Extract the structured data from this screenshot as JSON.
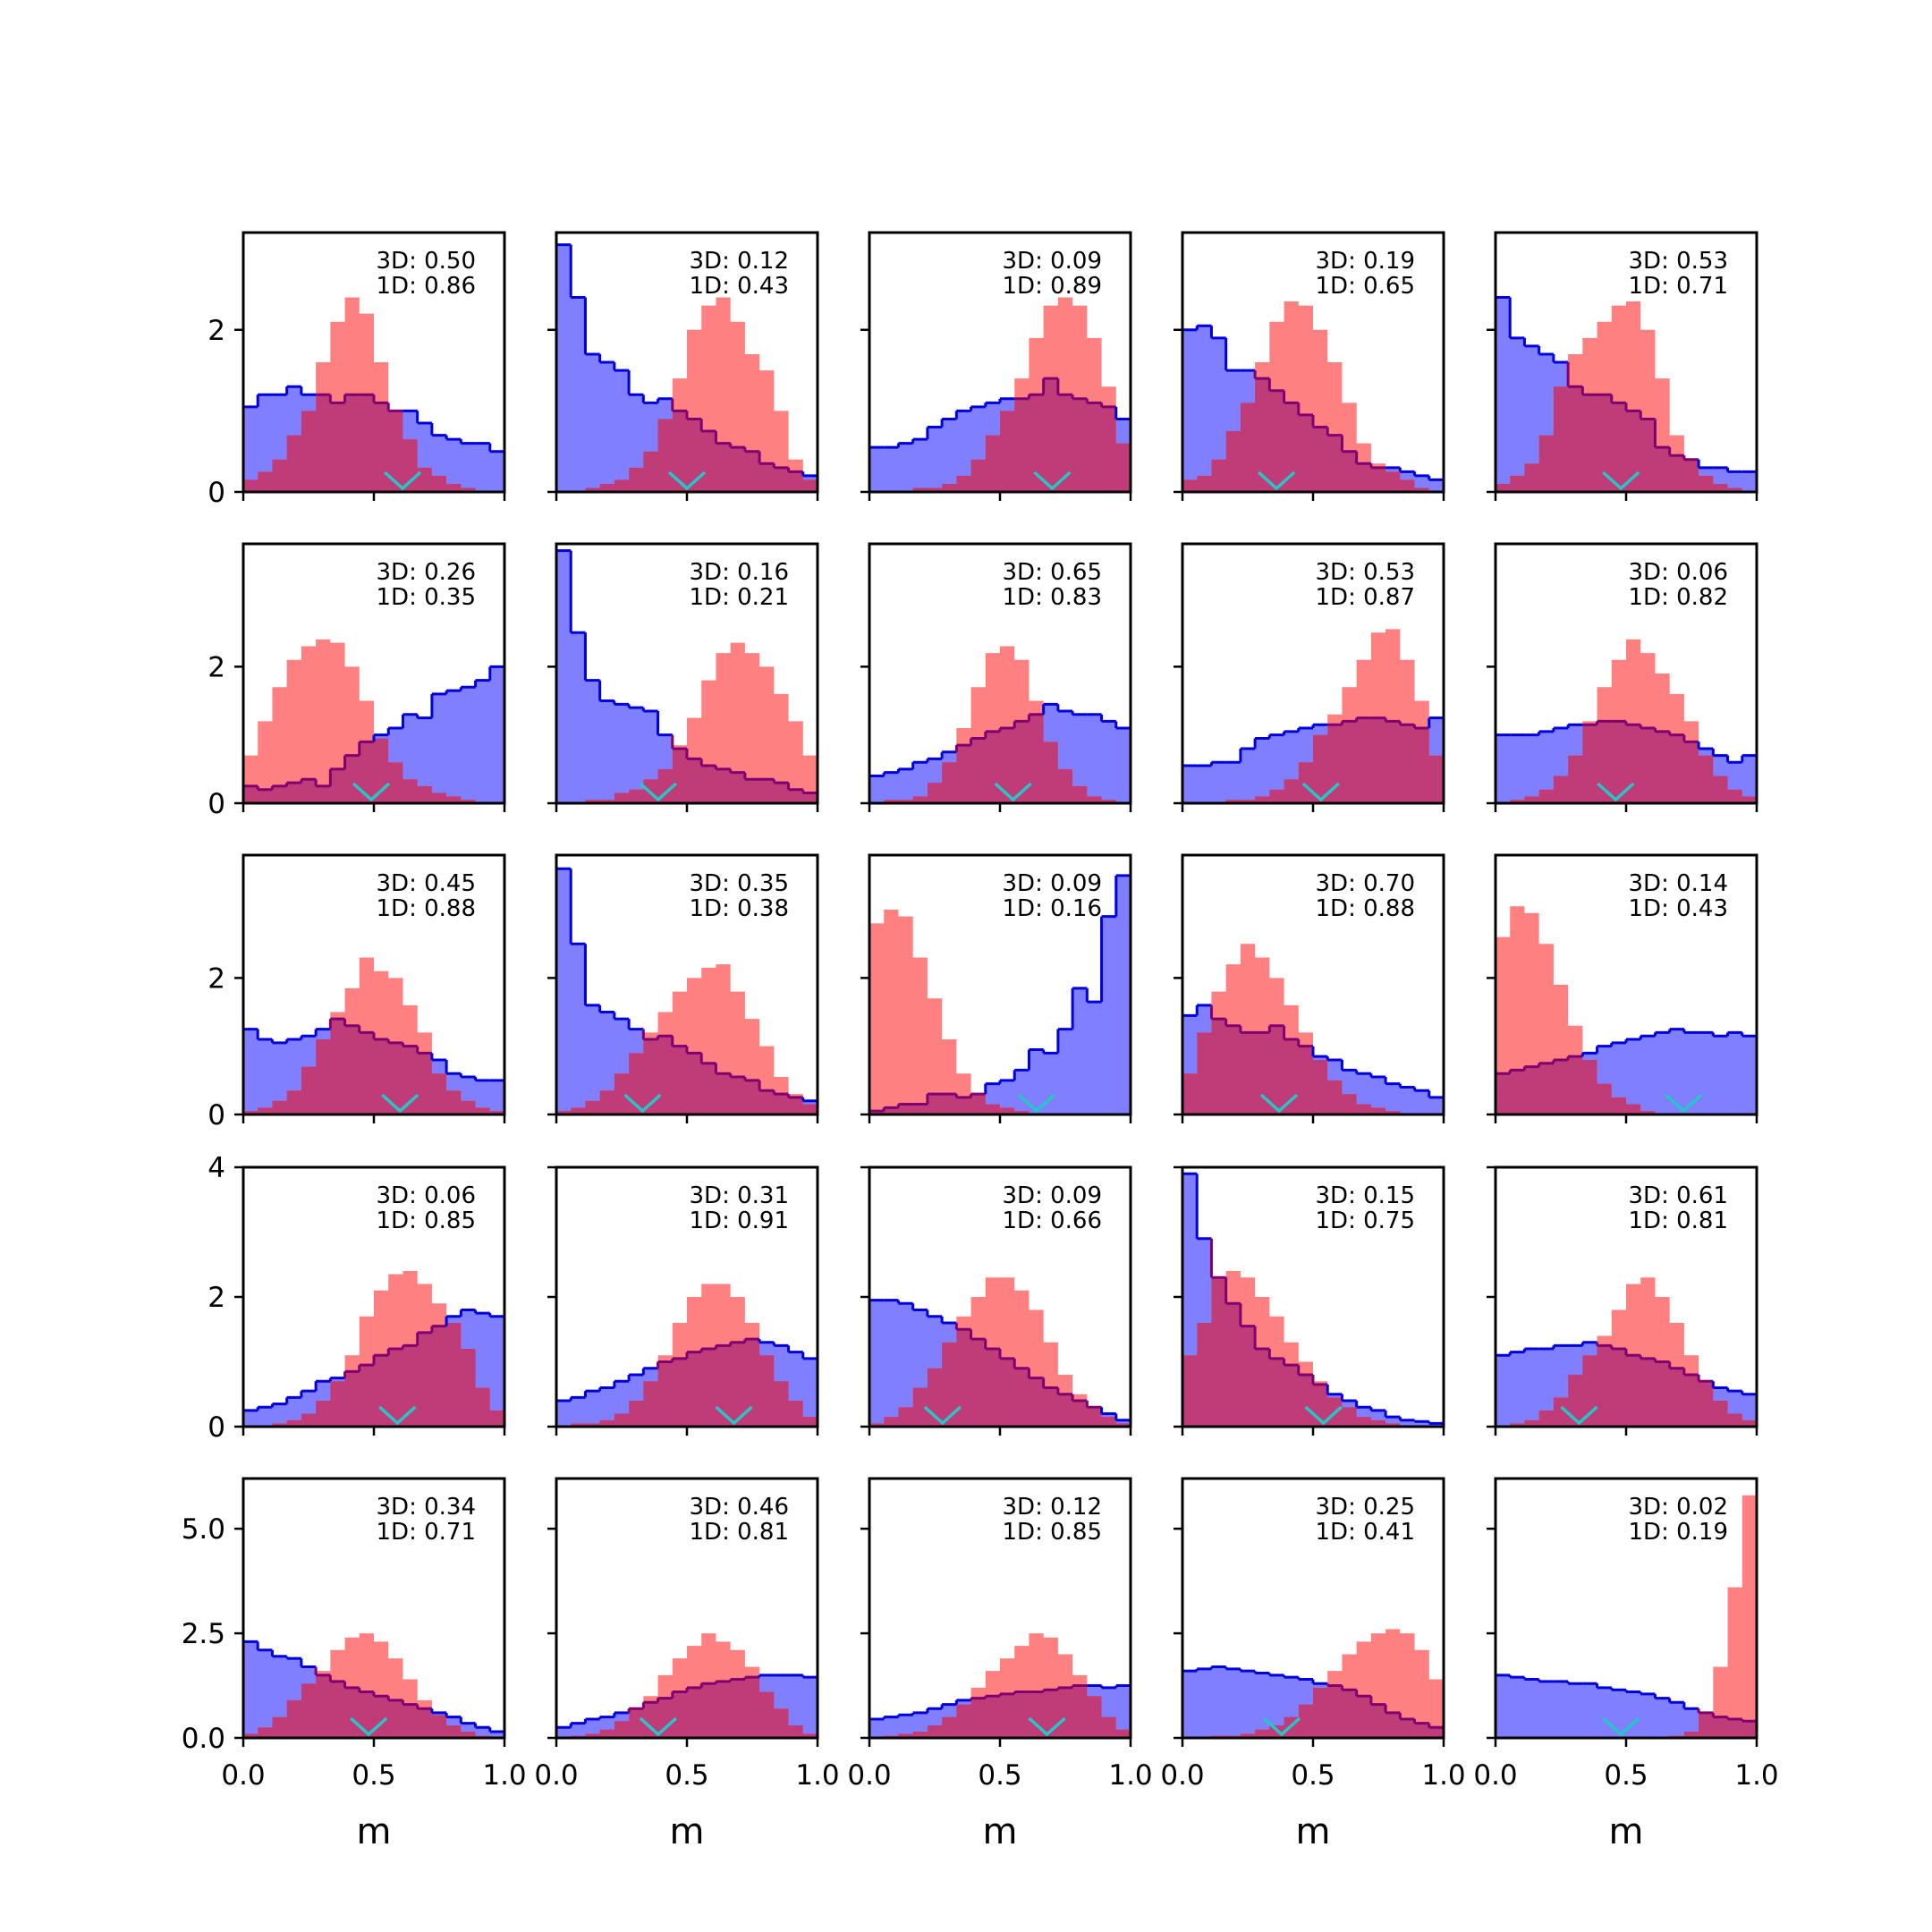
{
  "figure": {
    "xlabel": "m",
    "colors": {
      "blue_fill": "#7f7fff",
      "blue_line": "#0000dd",
      "red_fill": "#ff8080",
      "overlap_fill": "#c03c78",
      "overlap_line": "#800070",
      "marker": "#26c6c6",
      "axis": "#000000"
    }
  },
  "chart_data": {
    "type": "histogram-grid",
    "rows": 5,
    "cols": 5,
    "xlim": [
      0,
      1
    ],
    "xticks": [
      0,
      0.5,
      1
    ],
    "xtick_labels": [
      "0.0",
      "0.5",
      "1.0"
    ],
    "xlabel": "m",
    "row_axes": [
      {
        "ylim": [
          0,
          3.2
        ],
        "yticks": [
          0,
          2
        ],
        "ytick_labels": [
          "0",
          "2"
        ]
      },
      {
        "ylim": [
          0,
          3.8
        ],
        "yticks": [
          0,
          2
        ],
        "ytick_labels": [
          "0",
          "2"
        ]
      },
      {
        "ylim": [
          0,
          3.8
        ],
        "yticks": [
          0,
          2
        ],
        "ytick_labels": [
          "0",
          "2"
        ]
      },
      {
        "ylim": [
          0,
          4.0
        ],
        "yticks": [
          0,
          2,
          4
        ],
        "ytick_labels": [
          "0",
          "2",
          "4"
        ]
      },
      {
        "ylim": [
          0,
          6.2
        ],
        "yticks": [
          0,
          2.5,
          5.0
        ],
        "ytick_labels": [
          "0.0",
          "2.5",
          "5.0"
        ]
      }
    ],
    "panels": [
      {
        "label_3d": "3D: 0.50",
        "label_1d": "1D: 0.86",
        "marker": 0.61,
        "blue": [
          1.05,
          1.2,
          1.2,
          1.3,
          1.2,
          1.2,
          1.1,
          1.2,
          1.2,
          1.1,
          1.0,
          1.0,
          0.85,
          0.7,
          0.65,
          0.6,
          0.6,
          0.5
        ],
        "red": [
          0.15,
          0.25,
          0.4,
          0.7,
          1.0,
          1.6,
          2.1,
          2.4,
          2.2,
          1.6,
          1.0,
          0.65,
          0.3,
          0.2,
          0.1,
          0.05,
          0.0,
          0.0
        ]
      },
      {
        "label_3d": "3D: 0.12",
        "label_1d": "1D: 0.43",
        "marker": 0.5,
        "blue": [
          3.05,
          2.4,
          1.7,
          1.6,
          1.5,
          1.2,
          1.1,
          1.15,
          1.0,
          0.9,
          0.75,
          0.6,
          0.55,
          0.5,
          0.35,
          0.3,
          0.25,
          0.2
        ],
        "red": [
          0.0,
          0.0,
          0.05,
          0.1,
          0.15,
          0.3,
          0.5,
          0.9,
          1.4,
          2.0,
          2.3,
          2.4,
          2.1,
          1.7,
          1.5,
          1.0,
          0.4,
          0.15
        ]
      },
      {
        "label_3d": "3D: 0.09",
        "label_1d": "1D: 0.89",
        "marker": 0.7,
        "blue": [
          0.55,
          0.55,
          0.6,
          0.65,
          0.8,
          0.9,
          1.0,
          1.05,
          1.1,
          1.15,
          1.15,
          1.2,
          1.4,
          1.2,
          1.15,
          1.1,
          1.05,
          0.9
        ],
        "red": [
          0.0,
          0.0,
          0.0,
          0.05,
          0.05,
          0.1,
          0.2,
          0.4,
          0.7,
          1.0,
          1.4,
          1.9,
          2.3,
          2.4,
          2.3,
          1.9,
          1.3,
          0.6
        ]
      },
      {
        "label_3d": "3D: 0.19",
        "label_1d": "1D: 0.65",
        "marker": 0.36,
        "blue": [
          2.0,
          2.05,
          1.9,
          1.5,
          1.5,
          1.4,
          1.25,
          1.1,
          0.95,
          0.8,
          0.7,
          0.5,
          0.35,
          0.3,
          0.3,
          0.25,
          0.2,
          0.15
        ],
        "red": [
          0.15,
          0.2,
          0.4,
          0.75,
          1.1,
          1.6,
          2.1,
          2.35,
          2.3,
          2.0,
          1.6,
          1.1,
          0.6,
          0.35,
          0.25,
          0.15,
          0.05,
          0.0
        ]
      },
      {
        "label_3d": "3D: 0.53",
        "label_1d": "1D: 0.71",
        "marker": 0.48,
        "blue": [
          2.4,
          1.9,
          1.8,
          1.7,
          1.6,
          1.3,
          1.2,
          1.2,
          1.1,
          1.0,
          0.9,
          0.55,
          0.45,
          0.4,
          0.3,
          0.3,
          0.25,
          0.25
        ],
        "red": [
          0.1,
          0.2,
          0.35,
          0.7,
          1.3,
          1.7,
          1.9,
          2.1,
          2.3,
          2.35,
          2.0,
          1.4,
          0.7,
          0.4,
          0.2,
          0.1,
          0.05,
          0.0
        ]
      },
      {
        "label_3d": "3D: 0.26",
        "label_1d": "1D: 0.35",
        "marker": 0.49,
        "blue": [
          0.25,
          0.2,
          0.25,
          0.3,
          0.35,
          0.25,
          0.5,
          0.7,
          0.9,
          1.0,
          1.1,
          1.3,
          1.25,
          1.6,
          1.65,
          1.7,
          1.8,
          2.0
        ],
        "red": [
          0.7,
          1.2,
          1.7,
          2.1,
          2.3,
          2.4,
          2.35,
          2.0,
          1.5,
          0.95,
          0.6,
          0.35,
          0.25,
          0.15,
          0.1,
          0.05,
          0.0,
          0.0
        ]
      },
      {
        "label_3d": "3D: 0.16",
        "label_1d": "1D: 0.21",
        "marker": 0.39,
        "blue": [
          3.7,
          2.5,
          1.8,
          1.5,
          1.45,
          1.4,
          1.35,
          1.0,
          0.8,
          0.65,
          0.55,
          0.5,
          0.45,
          0.35,
          0.35,
          0.3,
          0.2,
          0.15
        ],
        "red": [
          0.0,
          0.0,
          0.05,
          0.05,
          0.15,
          0.2,
          0.35,
          0.5,
          0.85,
          1.25,
          1.8,
          2.2,
          2.35,
          2.2,
          2.0,
          1.6,
          1.2,
          0.7
        ]
      },
      {
        "label_3d": "3D: 0.65",
        "label_1d": "1D: 0.83",
        "marker": 0.55,
        "blue": [
          0.4,
          0.45,
          0.5,
          0.6,
          0.65,
          0.75,
          0.85,
          0.95,
          1.05,
          1.1,
          1.2,
          1.3,
          1.45,
          1.35,
          1.3,
          1.3,
          1.2,
          1.1
        ],
        "red": [
          0.0,
          0.05,
          0.05,
          0.1,
          0.3,
          0.6,
          1.1,
          1.7,
          2.2,
          2.3,
          2.1,
          1.5,
          0.9,
          0.5,
          0.25,
          0.1,
          0.05,
          0.0
        ]
      },
      {
        "label_3d": "3D: 0.53",
        "label_1d": "1D: 0.87",
        "marker": 0.53,
        "blue": [
          0.55,
          0.55,
          0.6,
          0.6,
          0.8,
          0.95,
          1.0,
          1.05,
          1.1,
          1.15,
          1.15,
          1.2,
          1.25,
          1.25,
          1.2,
          1.15,
          1.1,
          1.25
        ],
        "red": [
          0.0,
          0.0,
          0.0,
          0.05,
          0.05,
          0.1,
          0.2,
          0.35,
          0.6,
          1.0,
          1.3,
          1.7,
          2.1,
          2.5,
          2.55,
          2.1,
          1.5,
          0.7
        ]
      },
      {
        "label_3d": "3D: 0.06",
        "label_1d": "1D: 0.82",
        "marker": 0.46,
        "blue": [
          1.0,
          1.0,
          1.0,
          1.05,
          1.1,
          1.15,
          1.15,
          1.2,
          1.2,
          1.15,
          1.1,
          1.05,
          1.0,
          0.9,
          0.8,
          0.7,
          0.6,
          0.7
        ],
        "red": [
          0.0,
          0.05,
          0.1,
          0.2,
          0.4,
          0.7,
          1.2,
          1.7,
          2.1,
          2.4,
          2.2,
          1.9,
          1.6,
          1.2,
          0.7,
          0.4,
          0.2,
          0.1
        ]
      },
      {
        "label_3d": "3D: 0.45",
        "label_1d": "1D: 0.88",
        "marker": 0.6,
        "blue": [
          1.25,
          1.1,
          1.05,
          1.1,
          1.15,
          1.25,
          1.4,
          1.3,
          1.2,
          1.1,
          1.05,
          1.0,
          0.9,
          0.8,
          0.6,
          0.55,
          0.5,
          0.5
        ],
        "red": [
          0.05,
          0.1,
          0.2,
          0.35,
          0.7,
          1.1,
          1.5,
          1.85,
          2.3,
          2.1,
          2.0,
          1.6,
          1.2,
          0.6,
          0.35,
          0.2,
          0.1,
          0.05
        ]
      },
      {
        "label_3d": "3D: 0.35",
        "label_1d": "1D: 0.38",
        "marker": 0.33,
        "blue": [
          3.6,
          2.5,
          1.6,
          1.5,
          1.4,
          1.25,
          1.1,
          1.15,
          1.0,
          0.9,
          0.75,
          0.6,
          0.55,
          0.5,
          0.35,
          0.3,
          0.25,
          0.2
        ],
        "red": [
          0.05,
          0.1,
          0.2,
          0.35,
          0.6,
          0.9,
          1.2,
          1.5,
          1.8,
          2.0,
          2.15,
          2.2,
          1.8,
          1.4,
          1.0,
          0.55,
          0.3,
          0.15
        ]
      },
      {
        "label_3d": "3D: 0.09",
        "label_1d": "1D: 0.16",
        "marker": 0.64,
        "blue": [
          0.05,
          0.1,
          0.15,
          0.15,
          0.3,
          0.3,
          0.25,
          0.3,
          0.45,
          0.5,
          0.65,
          0.95,
          0.9,
          1.25,
          1.85,
          1.65,
          2.9,
          3.5
        ],
        "red": [
          2.8,
          3.0,
          2.9,
          2.3,
          1.7,
          1.1,
          0.6,
          0.3,
          0.15,
          0.1,
          0.05,
          0.0,
          0.0,
          0.0,
          0.0,
          0.0,
          0.0,
          0.0
        ]
      },
      {
        "label_3d": "3D: 0.70",
        "label_1d": "1D: 0.88",
        "marker": 0.37,
        "blue": [
          1.45,
          1.6,
          1.4,
          1.3,
          1.2,
          1.2,
          1.3,
          1.1,
          1.0,
          0.85,
          0.8,
          0.65,
          0.6,
          0.55,
          0.45,
          0.4,
          0.35,
          0.25
        ],
        "red": [
          0.6,
          1.2,
          1.8,
          2.2,
          2.5,
          2.3,
          2.0,
          1.6,
          1.2,
          0.8,
          0.5,
          0.3,
          0.15,
          0.1,
          0.05,
          0.0,
          0.0,
          0.0
        ]
      },
      {
        "label_3d": "3D: 0.14",
        "label_1d": "1D: 0.43",
        "marker": 0.72,
        "blue": [
          0.6,
          0.65,
          0.7,
          0.75,
          0.8,
          0.85,
          0.9,
          1.0,
          1.05,
          1.1,
          1.15,
          1.2,
          1.25,
          1.2,
          1.2,
          1.15,
          1.2,
          1.15
        ],
        "red": [
          2.6,
          3.05,
          2.95,
          2.5,
          1.9,
          1.3,
          0.8,
          0.45,
          0.25,
          0.15,
          0.05,
          0.0,
          0.0,
          0.0,
          0.0,
          0.0,
          0.0,
          0.0
        ]
      },
      {
        "label_3d": "3D: 0.06",
        "label_1d": "1D: 0.85",
        "marker": 0.59,
        "blue": [
          0.25,
          0.3,
          0.35,
          0.45,
          0.55,
          0.7,
          0.75,
          0.85,
          0.95,
          1.1,
          1.2,
          1.25,
          1.45,
          1.55,
          1.7,
          1.8,
          1.75,
          1.7
        ],
        "red": [
          0.0,
          0.0,
          0.05,
          0.1,
          0.2,
          0.4,
          0.7,
          1.1,
          1.7,
          2.1,
          2.35,
          2.4,
          2.2,
          1.9,
          1.6,
          1.2,
          0.6,
          0.25
        ]
      },
      {
        "label_3d": "3D: 0.31",
        "label_1d": "1D: 0.91",
        "marker": 0.68,
        "blue": [
          0.4,
          0.45,
          0.55,
          0.6,
          0.7,
          0.8,
          0.9,
          1.0,
          1.05,
          1.15,
          1.2,
          1.25,
          1.3,
          1.35,
          1.3,
          1.25,
          1.15,
          1.05
        ],
        "red": [
          0.0,
          0.05,
          0.05,
          0.1,
          0.2,
          0.4,
          0.7,
          1.1,
          1.6,
          2.0,
          2.2,
          2.2,
          2.0,
          1.6,
          1.1,
          0.7,
          0.4,
          0.15
        ]
      },
      {
        "label_3d": "3D: 0.09",
        "label_1d": "1D: 0.66",
        "marker": 0.28,
        "blue": [
          1.95,
          1.95,
          1.9,
          1.8,
          1.7,
          1.6,
          1.5,
          1.35,
          1.2,
          1.05,
          0.9,
          0.75,
          0.6,
          0.5,
          0.4,
          0.3,
          0.2,
          0.1
        ],
        "red": [
          0.05,
          0.15,
          0.3,
          0.6,
          0.9,
          1.3,
          1.7,
          2.0,
          2.3,
          2.3,
          2.1,
          1.8,
          1.3,
          0.8,
          0.5,
          0.3,
          0.15,
          0.05
        ]
      },
      {
        "label_3d": "3D: 0.15",
        "label_1d": "1D: 0.75",
        "marker": 0.54,
        "blue": [
          3.9,
          2.9,
          2.3,
          1.9,
          1.55,
          1.2,
          1.05,
          0.95,
          0.8,
          0.65,
          0.5,
          0.4,
          0.3,
          0.25,
          0.15,
          0.1,
          0.08,
          0.05
        ],
        "red": [
          1.1,
          1.6,
          2.3,
          2.4,
          2.3,
          2.0,
          1.7,
          1.3,
          1.0,
          0.7,
          0.45,
          0.3,
          0.15,
          0.1,
          0.05,
          0.0,
          0.0,
          0.0
        ]
      },
      {
        "label_3d": "3D: 0.61",
        "label_1d": "1D: 0.81",
        "marker": 0.32,
        "blue": [
          1.1,
          1.15,
          1.2,
          1.2,
          1.25,
          1.25,
          1.3,
          1.25,
          1.2,
          1.1,
          1.05,
          1.0,
          0.9,
          0.8,
          0.7,
          0.6,
          0.55,
          0.5
        ],
        "red": [
          0.0,
          0.05,
          0.1,
          0.25,
          0.45,
          0.8,
          1.1,
          1.4,
          1.8,
          2.2,
          2.3,
          2.0,
          1.6,
          1.1,
          0.7,
          0.4,
          0.2,
          0.1
        ]
      },
      {
        "label_3d": "3D: 0.34",
        "label_1d": "1D: 0.71",
        "marker": 0.48,
        "blue": [
          2.3,
          2.1,
          1.95,
          1.9,
          1.7,
          1.5,
          1.35,
          1.2,
          1.1,
          1.0,
          0.9,
          0.8,
          0.7,
          0.6,
          0.5,
          0.35,
          0.25,
          0.15
        ],
        "red": [
          0.1,
          0.25,
          0.5,
          0.9,
          1.3,
          1.6,
          2.1,
          2.4,
          2.5,
          2.3,
          1.9,
          1.4,
          0.9,
          0.55,
          0.3,
          0.15,
          0.05,
          0.0
        ]
      },
      {
        "label_3d": "3D: 0.46",
        "label_1d": "1D: 0.81",
        "marker": 0.39,
        "blue": [
          0.25,
          0.35,
          0.45,
          0.5,
          0.6,
          0.7,
          0.85,
          0.95,
          1.1,
          1.2,
          1.3,
          1.35,
          1.4,
          1.45,
          1.5,
          1.5,
          1.5,
          1.45
        ],
        "red": [
          0.0,
          0.05,
          0.1,
          0.2,
          0.4,
          0.7,
          1.0,
          1.5,
          1.9,
          2.2,
          2.5,
          2.3,
          2.1,
          1.7,
          1.1,
          0.7,
          0.3,
          0.1
        ]
      },
      {
        "label_3d": "3D: 0.12",
        "label_1d": "1D: 0.85",
        "marker": 0.68,
        "blue": [
          0.45,
          0.5,
          0.55,
          0.6,
          0.7,
          0.8,
          0.9,
          0.95,
          1.0,
          1.05,
          1.1,
          1.1,
          1.15,
          1.2,
          1.25,
          1.25,
          1.2,
          1.25
        ],
        "red": [
          0.0,
          0.05,
          0.1,
          0.15,
          0.3,
          0.5,
          0.8,
          1.2,
          1.6,
          1.9,
          2.2,
          2.5,
          2.4,
          2.0,
          1.5,
          1.0,
          0.5,
          0.2
        ]
      },
      {
        "label_3d": "3D: 0.25",
        "label_1d": "1D: 0.41",
        "marker": 0.38,
        "blue": [
          1.6,
          1.65,
          1.7,
          1.65,
          1.6,
          1.55,
          1.5,
          1.45,
          1.4,
          1.3,
          1.25,
          1.15,
          1.0,
          0.8,
          0.6,
          0.45,
          0.35,
          0.25
        ],
        "red": [
          0.0,
          0.0,
          0.05,
          0.05,
          0.1,
          0.2,
          0.3,
          0.5,
          0.8,
          1.2,
          1.6,
          2.0,
          2.3,
          2.5,
          2.6,
          2.5,
          2.1,
          1.4
        ]
      },
      {
        "label_3d": "3D: 0.02",
        "label_1d": "1D: 0.19",
        "marker": 0.48,
        "blue": [
          1.5,
          1.45,
          1.4,
          1.35,
          1.35,
          1.3,
          1.3,
          1.2,
          1.15,
          1.1,
          1.05,
          0.95,
          0.85,
          0.7,
          0.6,
          0.5,
          0.45,
          0.4
        ],
        "red": [
          0.0,
          0.0,
          0.0,
          0.0,
          0.0,
          0.0,
          0.0,
          0.0,
          0.0,
          0.0,
          0.0,
          0.0,
          0.05,
          0.15,
          0.6,
          1.7,
          3.6,
          5.8
        ]
      }
    ]
  }
}
